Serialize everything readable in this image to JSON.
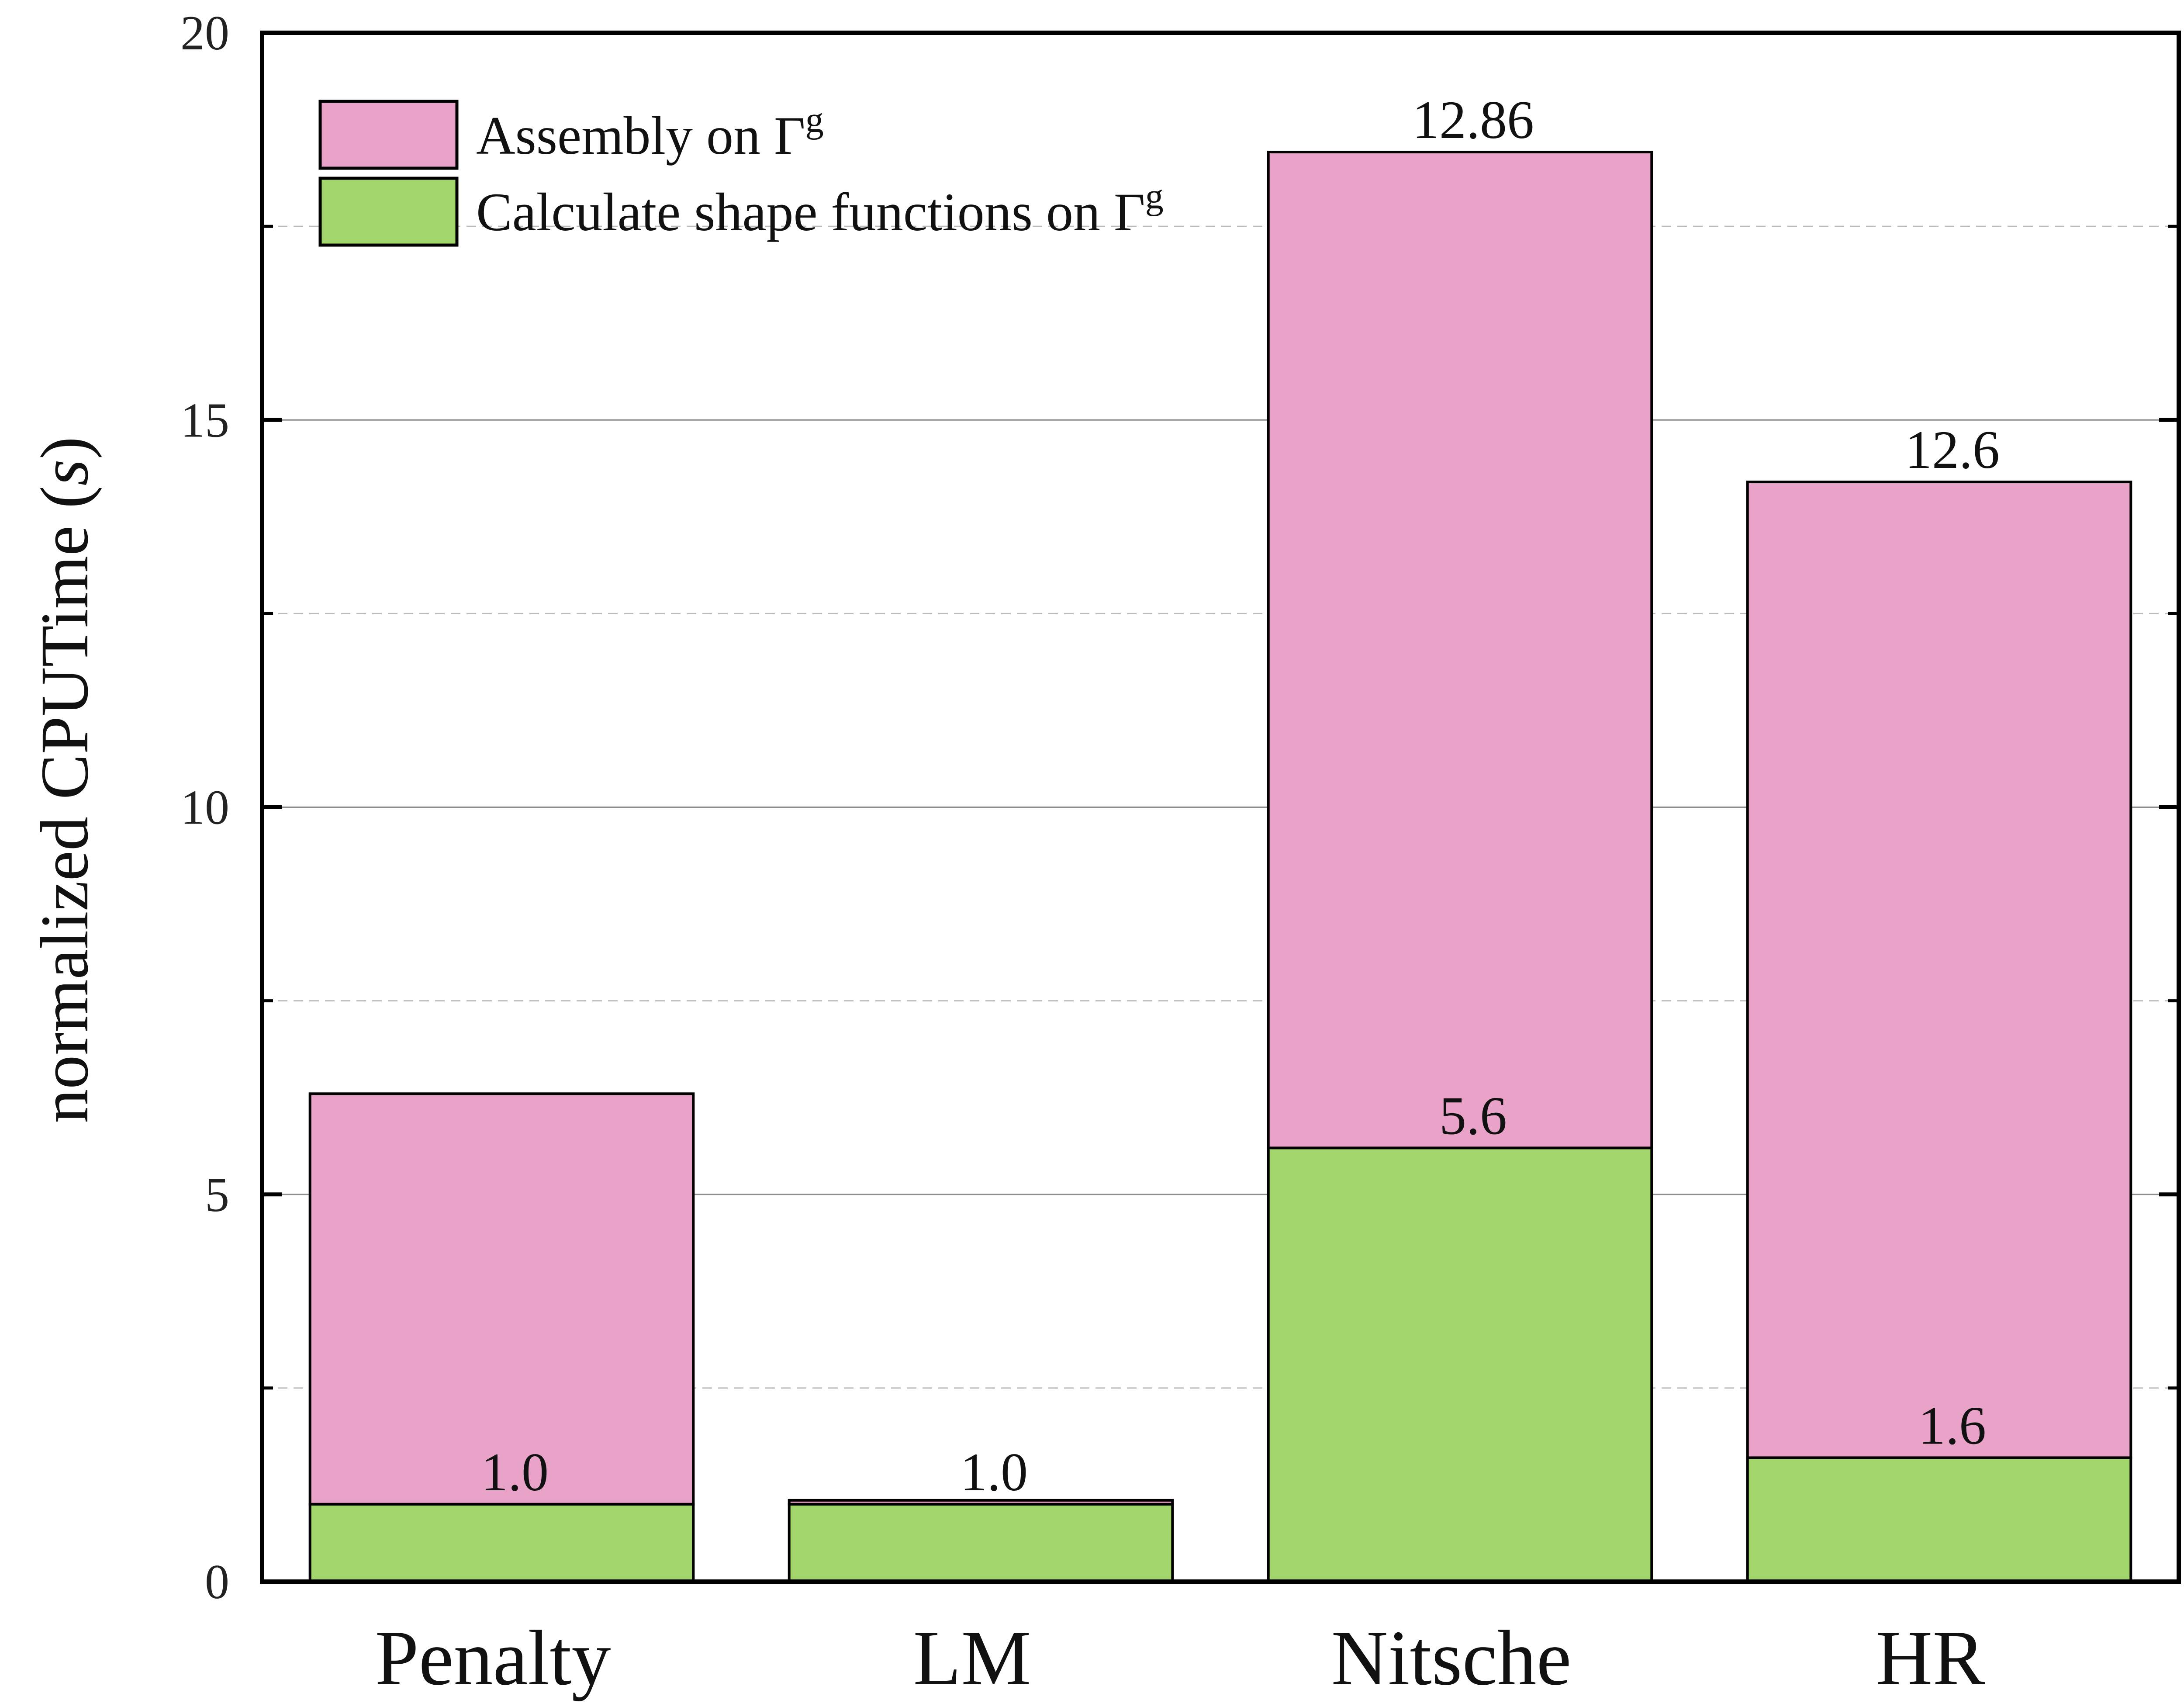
{
  "chart_data": {
    "type": "bar",
    "stacked": true,
    "categories": [
      "Penalty",
      "LM",
      "Nitsche",
      "HR"
    ],
    "series": [
      {
        "name": "Calculate shape functions on Γ",
        "name_sup": "g",
        "color": "#a2d66c",
        "values": [
          1.0,
          1.0,
          5.6,
          1.6
        ],
        "labels": [
          "1.0",
          "1.0",
          "5.6",
          "1.6"
        ]
      },
      {
        "name": "Assembly on Γ",
        "name_sup": "g",
        "color": "#e9a3c8",
        "values": [
          5.3,
          0.05,
          12.86,
          12.6
        ],
        "labels": [
          "",
          "",
          "12.86",
          "12.6"
        ]
      }
    ],
    "ylabel": "normalized CPUTime",
    "ylabel_unit": "s",
    "ylim": [
      0,
      20
    ],
    "yticks": [
      0,
      5,
      10,
      15,
      20
    ],
    "grid_major": true,
    "grid_minor": true,
    "legend_position": "top-left"
  }
}
